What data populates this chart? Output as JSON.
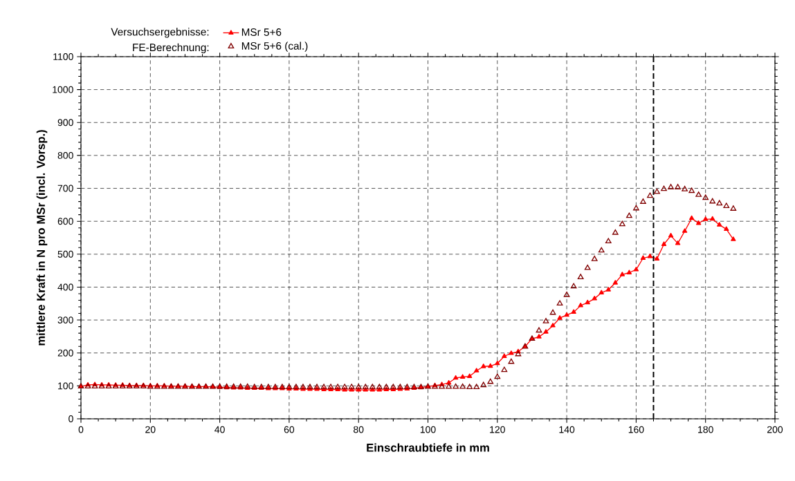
{
  "chart_data": {
    "type": "line",
    "xlabel": "Einschraubtiefe in mm",
    "ylabel": "mittlere Kraft in N pro MSr (incl. Vorsp.)",
    "x": [
      0,
      2,
      4,
      6,
      8,
      10,
      12,
      14,
      16,
      18,
      20,
      22,
      24,
      26,
      28,
      30,
      32,
      34,
      36,
      38,
      40,
      42,
      44,
      46,
      48,
      50,
      52,
      54,
      56,
      58,
      60,
      62,
      64,
      66,
      68,
      70,
      72,
      74,
      76,
      78,
      80,
      82,
      84,
      86,
      88,
      90,
      92,
      94,
      96,
      98,
      100,
      102,
      104,
      106,
      108,
      110,
      112,
      114,
      116,
      118,
      120,
      122,
      124,
      126,
      128,
      130,
      132,
      134,
      136,
      138,
      140,
      142,
      144,
      146,
      148,
      150,
      152,
      154,
      156,
      158,
      160,
      162,
      164,
      166,
      168,
      170,
      172,
      174,
      176,
      178,
      180,
      182,
      184,
      186,
      188
    ],
    "series": [
      {
        "name": "MSr 5+6",
        "color": "#ff0000",
        "marker": "triangle",
        "line_style": "solid",
        "values": [
          98,
          103,
          104,
          103,
          103,
          102,
          102,
          101,
          101,
          101,
          100,
          100,
          100,
          99,
          99,
          99,
          98,
          98,
          98,
          97,
          96,
          95,
          94,
          94,
          93,
          93,
          93,
          92,
          92,
          92,
          91,
          91,
          90,
          90,
          90,
          89,
          89,
          89,
          88,
          88,
          88,
          88,
          88,
          88,
          89,
          89,
          90,
          91,
          93,
          95,
          98,
          101,
          104,
          109,
          124,
          127,
          129,
          146,
          159,
          160,
          168,
          190,
          199,
          204,
          220,
          243,
          249,
          264,
          283,
          306,
          315,
          324,
          344,
          353,
          365,
          383,
          392,
          413,
          438,
          444,
          453,
          488,
          493,
          486,
          530,
          556,
          533,
          570,
          609,
          594,
          606,
          607,
          589,
          576,
          545
        ]
      },
      {
        "name": "MSr 5+6  (cal.)",
        "type": "scatter",
        "color": "#800000",
        "marker": "triangle",
        "values": [
          98,
          98,
          98,
          98,
          98,
          98,
          98,
          98,
          98,
          98,
          97,
          97,
          97,
          97,
          97,
          97,
          97,
          97,
          97,
          97,
          97,
          97,
          97,
          97,
          97,
          96,
          96,
          96,
          96,
          96,
          96,
          96,
          96,
          96,
          96,
          96,
          96,
          96,
          96,
          96,
          96,
          96,
          96,
          96,
          96,
          96,
          96,
          96,
          96,
          96,
          97,
          97,
          97,
          97,
          97,
          97,
          96,
          96,
          102,
          112,
          127,
          148,
          173,
          196,
          219,
          243,
          268,
          296,
          322,
          350,
          376,
          402,
          430,
          458,
          485,
          511,
          539,
          565,
          591,
          616,
          639,
          659,
          677,
          689,
          698,
          703,
          703,
          697,
          692,
          680,
          671,
          660,
          654,
          646,
          638
        ]
      }
    ],
    "annotations": [
      "Versuchsergebnisse:",
      "FE-Berechnung:"
    ],
    "xlim": [
      0,
      200
    ],
    "xticks": [
      0,
      20,
      40,
      60,
      80,
      100,
      120,
      140,
      160,
      180,
      200
    ],
    "ylim": [
      0,
      1100
    ],
    "yticks": [
      0,
      100,
      200,
      300,
      400,
      500,
      600,
      700,
      800,
      900,
      1000,
      1100
    ],
    "grid": true,
    "legend": "top left",
    "ref_lines": [
      {
        "axis": "x",
        "value": 165,
        "color": "#000000",
        "line_style": "dashed"
      }
    ]
  }
}
